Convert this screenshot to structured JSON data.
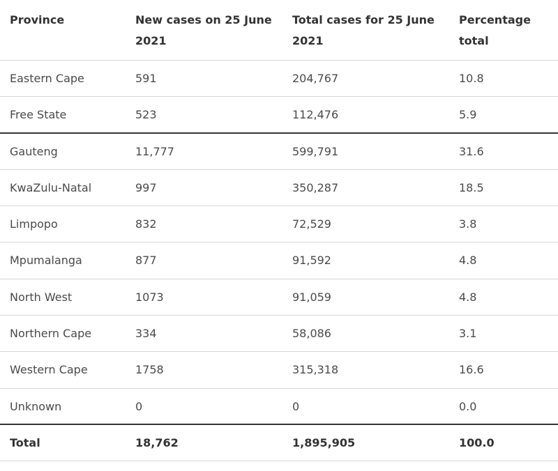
{
  "headers": {
    "province": "Province",
    "new_cases": "New cases on 25 June 2021",
    "total_cases": "Total cases for 25 June 2021",
    "percentage": "Percentage total"
  },
  "rows": [
    {
      "province": "Eastern Cape",
      "new_cases": "591",
      "total_cases": "204,767",
      "percentage": "10.8"
    },
    {
      "province": "Free State",
      "new_cases": "523",
      "total_cases": "112,476",
      "percentage": "5.9"
    },
    {
      "province": "Gauteng",
      "new_cases": "11,777",
      "total_cases": "599,791",
      "percentage": "31.6"
    },
    {
      "province": "KwaZulu-Natal",
      "new_cases": "997",
      "total_cases": "350,287",
      "percentage": "18.5"
    },
    {
      "province": "Limpopo",
      "new_cases": "832",
      "total_cases": "72,529",
      "percentage": "3.8"
    },
    {
      "province": "Mpumalanga",
      "new_cases": "877",
      "total_cases": "91,592",
      "percentage": "4.8"
    },
    {
      "province": "North West",
      "new_cases": "1073",
      "total_cases": "91,059",
      "percentage": "4.8"
    },
    {
      "province": "Northern Cape",
      "new_cases": "334",
      "total_cases": "58,086",
      "percentage": "3.1"
    },
    {
      "province": "Western Cape",
      "new_cases": "1758",
      "total_cases": "315,318",
      "percentage": "16.6"
    },
    {
      "province": "Unknown",
      "new_cases": "0",
      "total_cases": "0",
      "percentage": "0.0"
    }
  ],
  "total": {
    "province": "Total",
    "new_cases": "18,762",
    "total_cases": "1,895,905",
    "percentage": "100.0"
  },
  "colors": {
    "text": "#4a4a4a",
    "header_text": "#333333",
    "divider": "#d6d6d6",
    "strong_divider": "#333333"
  }
}
